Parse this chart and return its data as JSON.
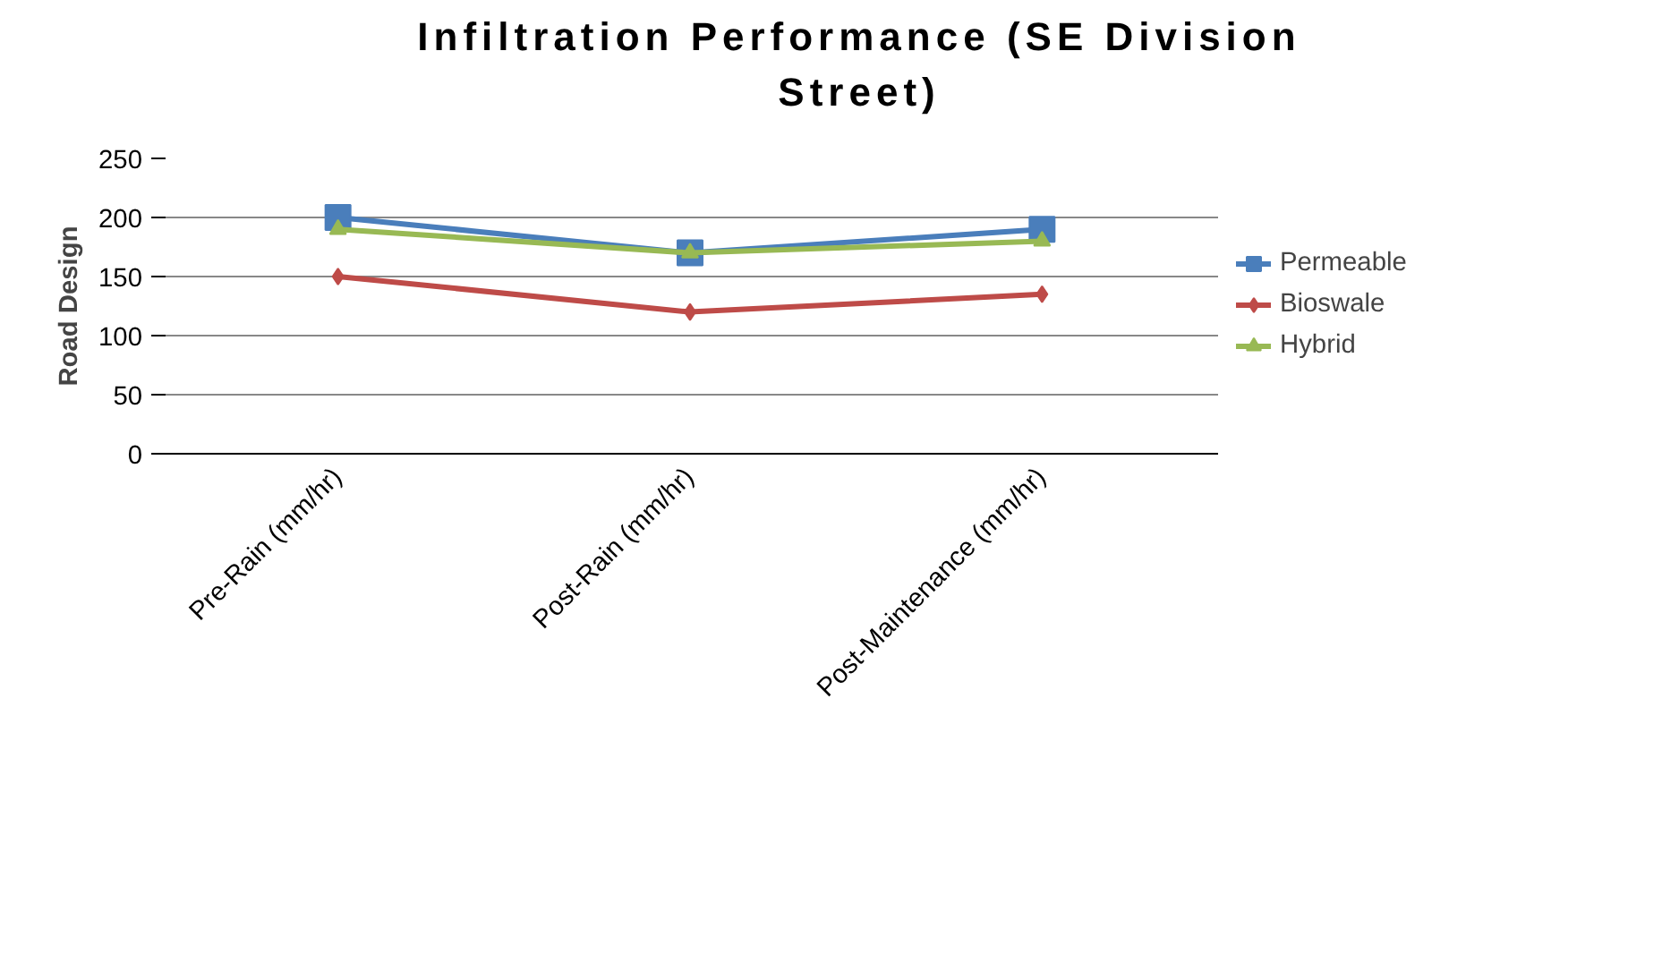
{
  "chart_data": {
    "type": "line",
    "title": "Infiltration Performance (SE Division Street)",
    "ylabel": "Road Design",
    "categories": [
      "Pre-Rain (mm/hr)",
      "Post-Rain (mm/hr)",
      "Post-Maintenance (mm/hr)"
    ],
    "series": [
      {
        "name": "Permeable",
        "color": "#4a7ebb",
        "values": [
          200,
          170,
          190
        ],
        "marker": "square"
      },
      {
        "name": "Bioswale",
        "color": "#be4b48",
        "values": [
          150,
          120,
          135
        ],
        "marker": "diamond"
      },
      {
        "name": "Hybrid",
        "color": "#98b954",
        "values": [
          190,
          170,
          180
        ],
        "marker": "triangle"
      }
    ],
    "ylim": [
      0,
      250
    ],
    "yticks": [
      0,
      50,
      100,
      150,
      200,
      250
    ],
    "grid": "y",
    "legend": "right",
    "line_style": "solid"
  }
}
